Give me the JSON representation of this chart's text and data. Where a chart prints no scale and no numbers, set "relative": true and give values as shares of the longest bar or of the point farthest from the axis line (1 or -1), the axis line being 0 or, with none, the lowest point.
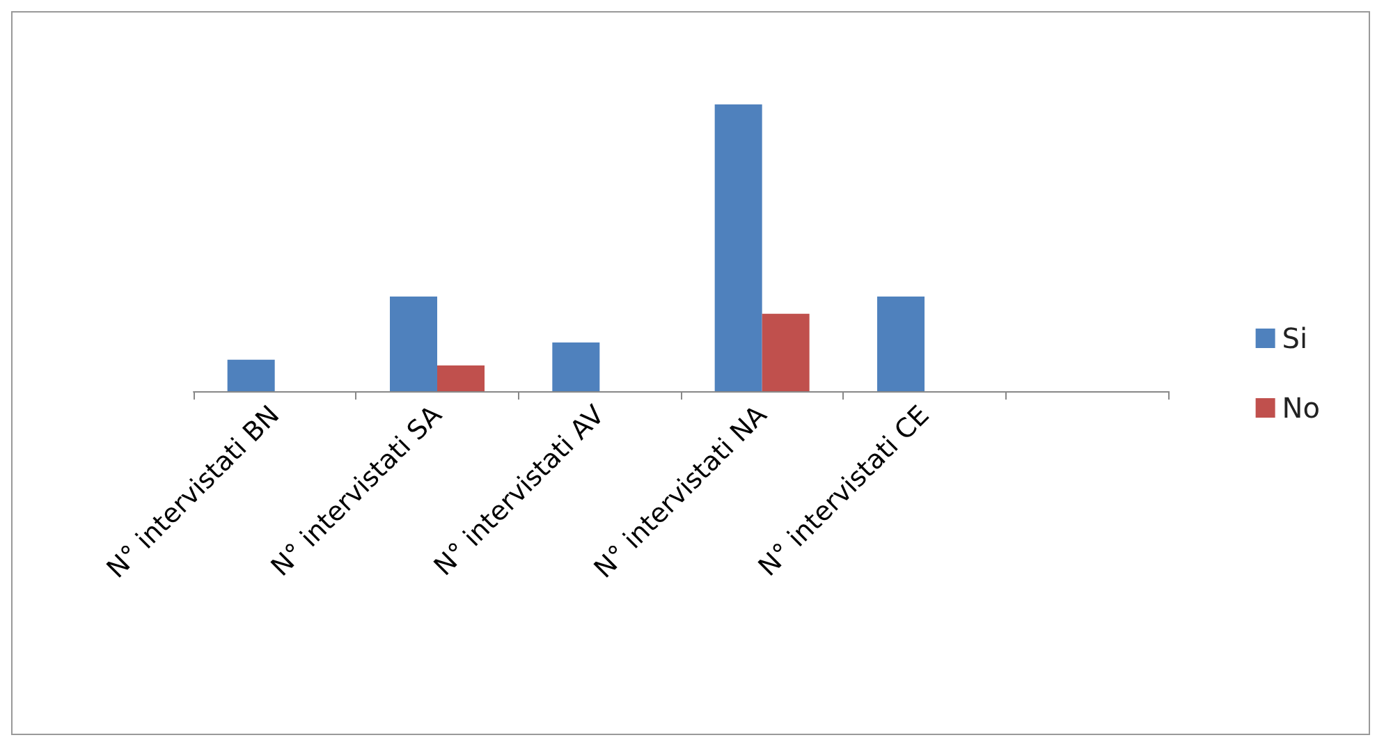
{
  "chart_data": {
    "type": "bar",
    "relative": true,
    "categories": [
      "N° intervistati BN",
      "N° intervistati SA",
      "N° intervistati AV",
      "N° intervistati NA",
      "N° intervistati CE",
      null
    ],
    "series": [
      {
        "name": "Si",
        "color": "#4f81bd",
        "values": [
          0.11,
          0.33,
          0.17,
          1,
          0.33,
          null
        ]
      },
      {
        "name": "No",
        "color": "#c0504d",
        "values": [
          null,
          0.09,
          null,
          0.27,
          null,
          null
        ]
      }
    ],
    "legend": "right",
    "grid": false
  }
}
